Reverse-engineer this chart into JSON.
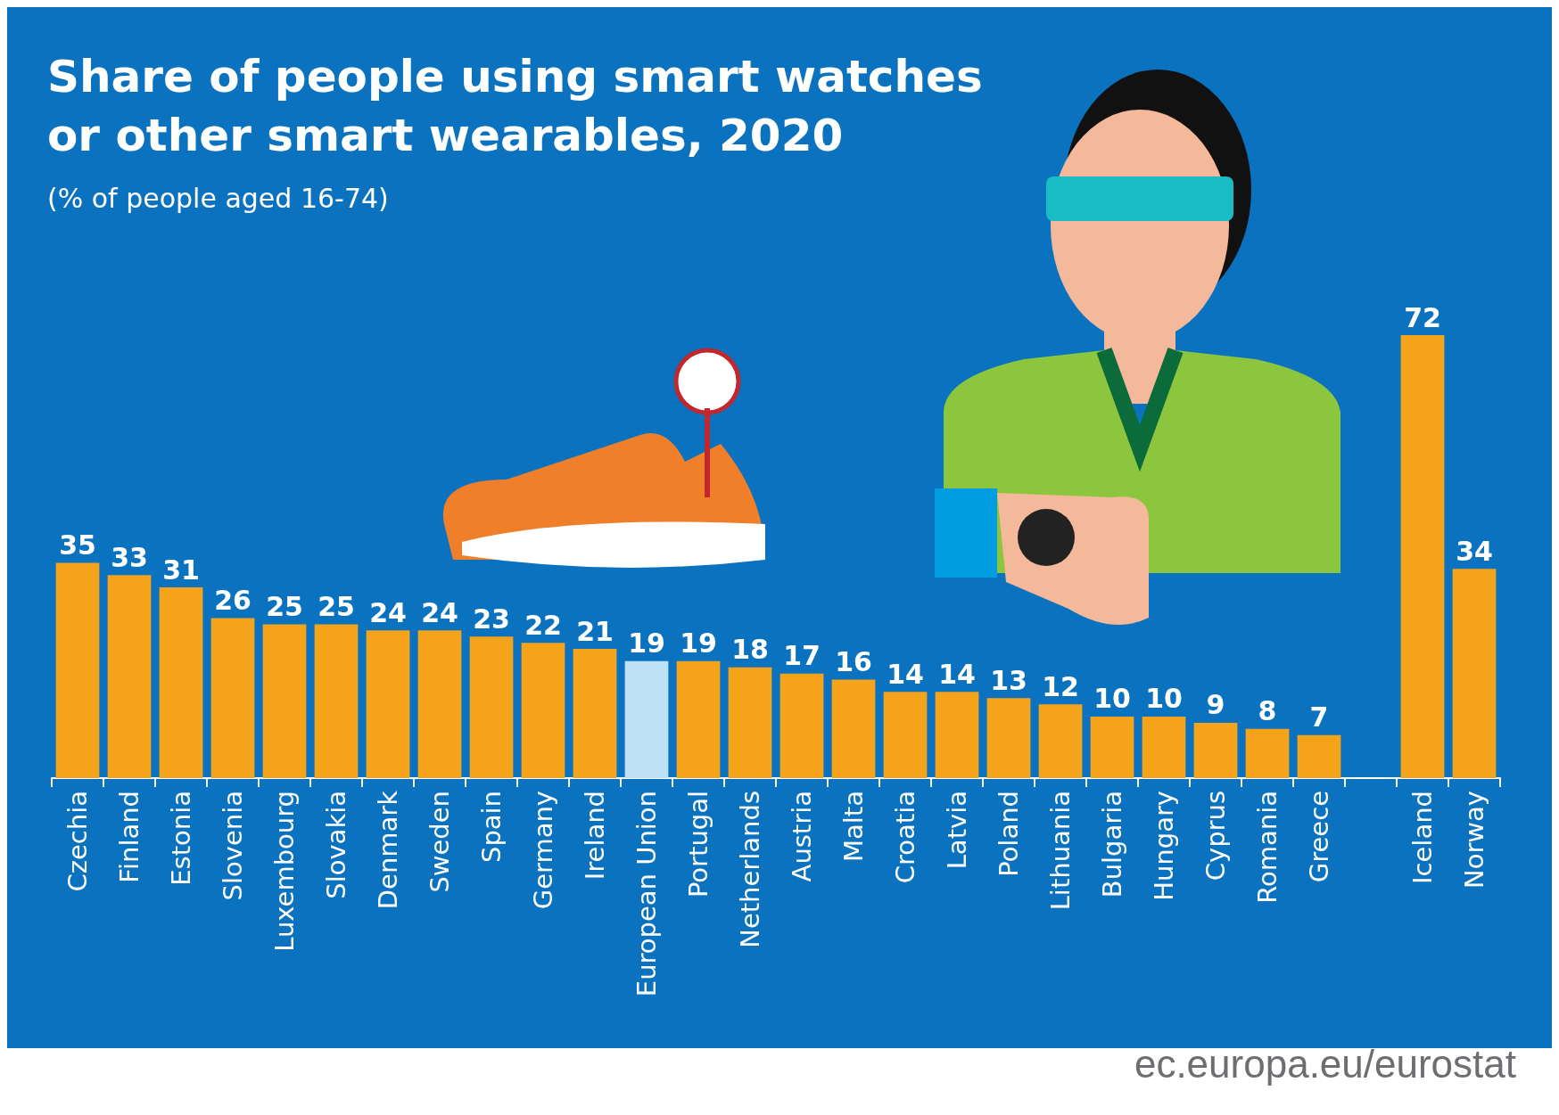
{
  "chart_data": {
    "type": "bar",
    "title": "Share of people using smart watches\nor other smart wearables, 2020",
    "subtitle": "(% of people aged 16-74)",
    "categories": [
      "Czechia",
      "Finland",
      "Estonia",
      "Slovenia",
      "Luxembourg",
      "Slovakia",
      "Denmark",
      "Sweden",
      "Spain",
      "Germany",
      "Ireland",
      "European Union",
      "Portugal",
      "Netherlands",
      "Austria",
      "Malta",
      "Croatia",
      "Latvia",
      "Poland",
      "Lithuania",
      "Bulgaria",
      "Hungary",
      "Cyprus",
      "Romania",
      "Greece",
      null,
      "Iceland",
      "Norway"
    ],
    "values": [
      35,
      33,
      31,
      26,
      25,
      25,
      24,
      24,
      23,
      22,
      21,
      19,
      19,
      18,
      17,
      16,
      14,
      14,
      13,
      12,
      10,
      10,
      9,
      8,
      7,
      null,
      72,
      34
    ],
    "colors": [
      "#f5a31a",
      "#f5a31a",
      "#f5a31a",
      "#f5a31a",
      "#f5a31a",
      "#f5a31a",
      "#f5a31a",
      "#f5a31a",
      "#f5a31a",
      "#f5a31a",
      "#f5a31a",
      "#bfe1f6",
      "#f5a31a",
      "#f5a31a",
      "#f5a31a",
      "#f5a31a",
      "#f5a31a",
      "#f5a31a",
      "#f5a31a",
      "#f5a31a",
      "#f5a31a",
      "#f5a31a",
      "#f5a31a",
      "#f5a31a",
      "#f5a31a",
      "#f5a31a",
      "#f5a31a",
      "#f5a31a"
    ],
    "data_labels": true,
    "annotations": [
      "ec.europa.eu/eurostat"
    ]
  }
}
